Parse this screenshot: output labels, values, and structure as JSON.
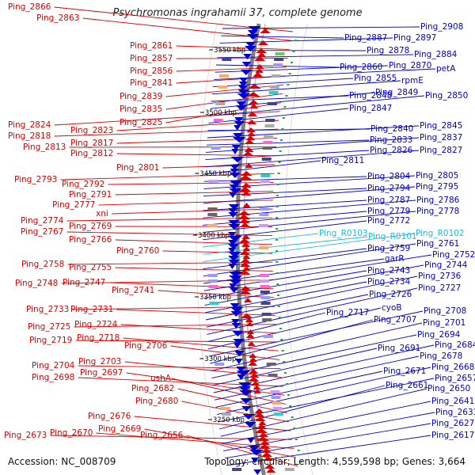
{
  "title": "Psychromonas ingrahamii 37, complete genome",
  "footer": {
    "accession": "Accession: NC_008709",
    "summary": "Topology: circular; Length: 4,559,598 bp; Genes: 3,664"
  },
  "colors": {
    "reverse_strand": "#dd0000",
    "forward_strand": "#0000cc",
    "rna_gene": "#22bbdd",
    "backbone": "#808080",
    "ruler_text": "#000000"
  },
  "scale_labels": [
    "3550 kbp",
    "3500 kbp",
    "3450 kbp",
    "3400 kbp",
    "3350 kbp",
    "3300 kbp",
    "3250 kbp"
  ],
  "left_labels": [
    "Ping_2866",
    "Ping_2863",
    "Ping_2861",
    "Ping_2857",
    "Ping_2856",
    "Ping_2841",
    "Ping_2839",
    "Ping_2835",
    "Ping_2825",
    "Ping_2824",
    "Ping_2823",
    "Ping_2818",
    "Ping_2817",
    "Ping_2813",
    "Ping_2812",
    "Ping_2801",
    "Ping_2793",
    "Ping_2792",
    "Ping_2791",
    "Ping_2777",
    "xni",
    "Ping_2774",
    "Ping_2769",
    "Ping_2767",
    "Ping_2766",
    "Ping_2760",
    "Ping_2758",
    "Ping_2755",
    "Ping_2748",
    "Ping_2747",
    "Ping_2741",
    "Ping_2733",
    "Ping_2731",
    "Ping_2725",
    "Ping_2724",
    "Ping_2719",
    "Ping_2718",
    "Ping_2706",
    "Ping_2704",
    "Ping_2703",
    "Ping_2698",
    "Ping_2697",
    "ushA",
    "Ping_2682",
    "Ping_2680",
    "Ping_2676",
    "Ping_2673",
    "Ping_2670",
    "Ping_2669",
    "Ping_2656"
  ],
  "right_labels": [
    "Ping_2908",
    "Ping_2887",
    "Ping_2897",
    "Ping_2878",
    "Ping_2884",
    "Ping_2860",
    "Ping_2870",
    "petA",
    "Ping_2855",
    "rpmE",
    "Ping_2848",
    "Ping_2849",
    "Ping_2850",
    "Ping_2847",
    "Ping_2840",
    "Ping_2845",
    "Ping_2833",
    "Ping_2837",
    "Ping_2826",
    "Ping_2827",
    "Ping_2811",
    "Ping_2804",
    "Ping_2805",
    "Ping_2794",
    "Ping_2795",
    "Ping_2787",
    "Ping_2786",
    "Ping_2779",
    "Ping_2778",
    "Ping_2772",
    "Ping_R0103",
    "Ping_R0101",
    "Ping_R0102",
    "Ping_2759",
    "Ping_2761",
    "garR",
    "Ping_2752",
    "Ping_2743",
    "Ping_2744",
    "Ping_2734",
    "Ping_2736",
    "Ping_2726",
    "Ping_2727",
    "Ping_2717",
    "cyoB",
    "Ping_2708",
    "Ping_2707",
    "Ping_2701",
    "Ping_2694",
    "Ping_2691",
    "Ping_2684",
    "Ping_2678",
    "Ping_2671",
    "Ping_2668",
    "Ping_2657",
    "Ping_2661",
    "Ping_2650",
    "Ping_2641",
    "Ping_2633",
    "Ping_2627",
    "Ping_2617"
  ]
}
